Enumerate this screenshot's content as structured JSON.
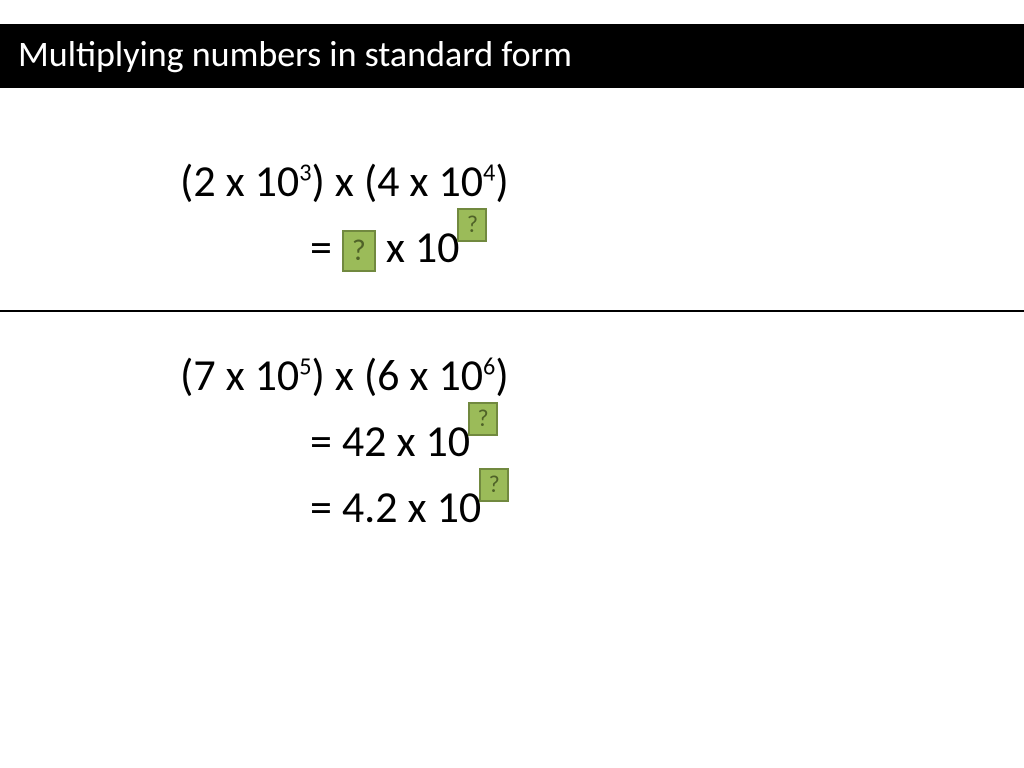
{
  "title": "Multiplying numbers in standard form",
  "colors": {
    "box_bg": "#9bbb59",
    "box_border": "#71893f",
    "box_text": "#4f6228",
    "title_bg": "#000000",
    "title_fg": "#ffffff",
    "body_text": "#000000"
  },
  "problem1": {
    "expr": {
      "a_coef": "2",
      "a_base": "10",
      "a_exp": "3",
      "b_coef": "4",
      "b_base": "10",
      "b_exp": "4"
    },
    "answer": {
      "coef": "?",
      "base": "10",
      "exp": "?"
    }
  },
  "problem2": {
    "expr": {
      "a_coef": "7",
      "a_base": "10",
      "a_exp": "5",
      "b_coef": "6",
      "b_base": "10",
      "b_exp": "6"
    },
    "step1": {
      "coef": "42",
      "base": "10",
      "exp": "?"
    },
    "step2": {
      "coef": "4.2",
      "base": "10",
      "exp": "?"
    }
  },
  "symbols": {
    "times": "x",
    "equals": "=",
    "lparen": "(",
    "rparen": ")"
  }
}
